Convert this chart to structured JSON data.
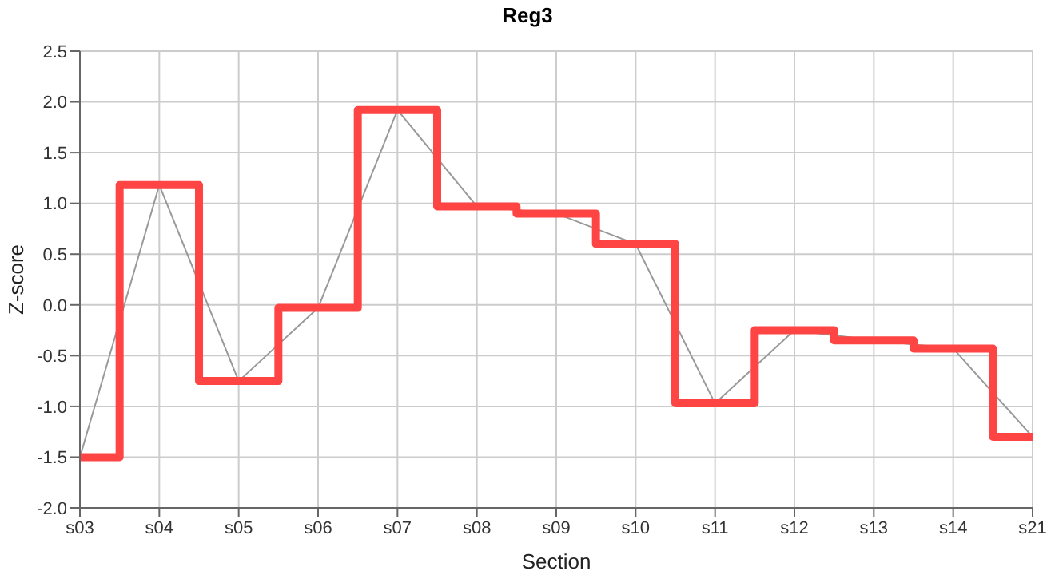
{
  "chart_data": {
    "type": "line",
    "title": "Reg3",
    "xlabel": "Section",
    "ylabel": "Z-score",
    "categories": [
      "s03",
      "s04",
      "s05",
      "s06",
      "s07",
      "s08",
      "s09",
      "s10",
      "s11",
      "s12",
      "s13",
      "s14",
      "s21"
    ],
    "series": [
      {
        "type": "line",
        "color": "#999999",
        "values": [
          -1.5,
          1.18,
          -0.75,
          -0.03,
          1.92,
          0.97,
          0.9,
          0.6,
          -0.97,
          -0.25,
          -0.35,
          -0.43,
          -1.3
        ]
      },
      {
        "type": "step",
        "color": "#ff4444",
        "values": [
          -1.5,
          1.18,
          -0.75,
          -0.03,
          1.92,
          0.97,
          0.9,
          0.6,
          -0.97,
          -0.25,
          -0.35,
          -0.43,
          -1.3
        ]
      }
    ],
    "ylim": [
      -2,
      2.5
    ],
    "yticks": [
      {
        "value": -2,
        "label": "-2.0"
      },
      {
        "value": -1.5,
        "label": "-1.5"
      },
      {
        "value": -1,
        "label": "-1.0"
      },
      {
        "value": -0.5,
        "label": "-0.5"
      },
      {
        "value": 0,
        "label": "0.0"
      },
      {
        "value": 0.5,
        "label": "0.5"
      },
      {
        "value": 1,
        "label": "1.0"
      },
      {
        "value": 1.5,
        "label": "1.5"
      },
      {
        "value": 2,
        "label": "2.0"
      },
      {
        "value": 2.5,
        "label": "2.5"
      }
    ],
    "grid": true,
    "marker": "none"
  }
}
